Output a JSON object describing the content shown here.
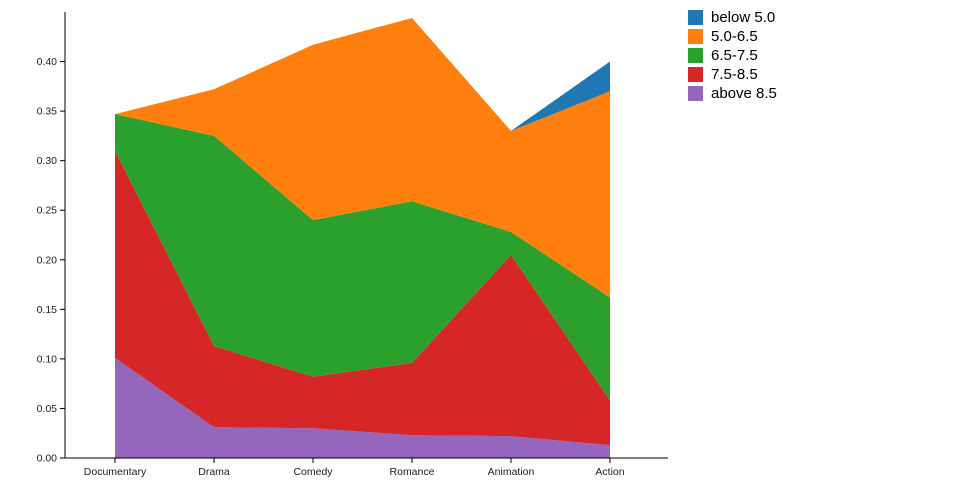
{
  "chart_data": {
    "type": "area",
    "stacked": true,
    "title": "",
    "xlabel": "",
    "ylabel": "",
    "categories": [
      "Documentary",
      "Drama",
      "Comedy",
      "Romance",
      "Animation",
      "Action"
    ],
    "series": [
      {
        "name": "below 5.0",
        "color": "#1f77b4",
        "values": [
          0,
          0,
          0,
          0,
          0,
          0.03
        ]
      },
      {
        "name": "5.0-6.5",
        "color": "#ff7f0e",
        "values": [
          0,
          0.047,
          0.177,
          0.185,
          0.102,
          0.208
        ]
      },
      {
        "name": "6.5-7.5",
        "color": "#2ca02c",
        "values": [
          0.037,
          0.212,
          0.158,
          0.163,
          0.023,
          0.104
        ]
      },
      {
        "name": "7.5-8.5",
        "color": "#d62728",
        "values": [
          0.209,
          0.082,
          0.052,
          0.073,
          0.183,
          0.045
        ]
      },
      {
        "name": "above 8.5",
        "color": "#9467bd",
        "values": [
          0.101,
          0.031,
          0.03,
          0.023,
          0.022,
          0.013
        ]
      }
    ],
    "stack_order_bottom_to_top": [
      "above 8.5",
      "7.5-8.5",
      "6.5-7.5",
      "5.0-6.5",
      "below 5.0"
    ],
    "y_ticks": [
      "0.00",
      "0.05",
      "0.10",
      "0.15",
      "0.20",
      "0.25",
      "0.30",
      "0.35",
      "0.40"
    ],
    "ylim": [
      0,
      0.45
    ],
    "grid": false,
    "legend_position": "top-right",
    "axis_color": "#000000",
    "tick_label_color": "#222222"
  }
}
